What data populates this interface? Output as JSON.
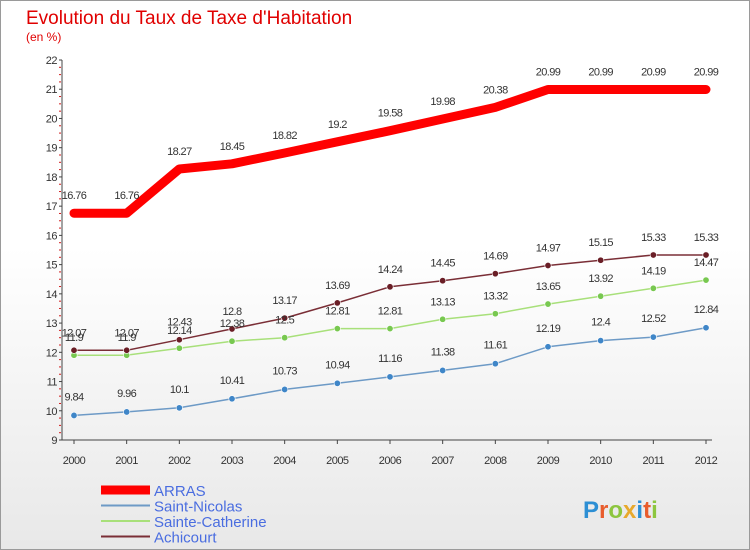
{
  "title": "Evolution du Taux de Taxe d'Habitation",
  "subtitle": "(en %)",
  "logo": {
    "text": "Proxiti",
    "letter_colors": [
      "#2d8fd4",
      "#e85c2c",
      "#8dc63f",
      "#e8a92c",
      "#2d8fd4",
      "#e85c2c",
      "#8dc63f"
    ]
  },
  "chart_data": {
    "type": "line",
    "x": [
      "2000",
      "2001",
      "2002",
      "2003",
      "2004",
      "2005",
      "2006",
      "2007",
      "2008",
      "2009",
      "2010",
      "2011",
      "2012"
    ],
    "ylim": [
      9,
      22
    ],
    "yticks": [
      "9",
      "10",
      "11",
      "12",
      "13",
      "14",
      "15",
      "16",
      "17",
      "18",
      "19",
      "20",
      "21",
      "22"
    ],
    "grid": false,
    "legend_position": "bottom-left",
    "series": [
      {
        "name": "ARRAS",
        "color": "#ff0000",
        "values": [
          16.76,
          16.76,
          18.27,
          18.45,
          18.82,
          19.2,
          19.58,
          19.98,
          20.38,
          20.99,
          20.99,
          20.99,
          20.99
        ],
        "labels": [
          "16.76",
          "16.76",
          "18.27",
          "18.45",
          "18.82",
          "19.2",
          "19.58",
          "19.98",
          "20.38",
          "20.99",
          "20.99",
          "20.99",
          "20.99"
        ]
      },
      {
        "name": "Saint-Nicolas",
        "color": "#6d9ac6",
        "marker_color": "#3f86c8",
        "values": [
          9.84,
          9.96,
          10.1,
          10.41,
          10.73,
          10.94,
          11.16,
          11.38,
          11.61,
          12.19,
          12.4,
          12.52,
          12.84
        ],
        "labels": [
          "9.84",
          "9.96",
          "10.1",
          "10.41",
          "10.73",
          "10.94",
          "11.16",
          "11.38",
          "11.61",
          "12.19",
          "12.4",
          "12.52",
          "12.84"
        ]
      },
      {
        "name": "Sainte-Catherine",
        "color": "#a8e07a",
        "marker_color": "#78c850",
        "values": [
          11.9,
          11.9,
          12.14,
          12.38,
          12.5,
          12.81,
          12.81,
          13.13,
          13.32,
          13.65,
          13.92,
          14.19,
          14.47
        ],
        "labels": [
          "11.9",
          "11.9",
          "12.14",
          "12.38",
          "12.5",
          "12.81",
          "12.81",
          "13.13",
          "13.32",
          "13.65",
          "13.92",
          "14.19",
          "14.47"
        ]
      },
      {
        "name": "Achicourt",
        "color": "#7a2e36",
        "marker_color": "#6a1e26",
        "values": [
          12.07,
          12.07,
          12.43,
          12.8,
          13.17,
          13.69,
          14.24,
          14.45,
          14.69,
          14.97,
          15.15,
          15.33,
          15.33
        ],
        "labels": [
          "12.07",
          "12.07",
          "12.43",
          "12.8",
          "13.17",
          "13.69",
          "14.24",
          "14.45",
          "14.69",
          "14.97",
          "15.15",
          "15.33",
          "15.33"
        ]
      }
    ]
  }
}
